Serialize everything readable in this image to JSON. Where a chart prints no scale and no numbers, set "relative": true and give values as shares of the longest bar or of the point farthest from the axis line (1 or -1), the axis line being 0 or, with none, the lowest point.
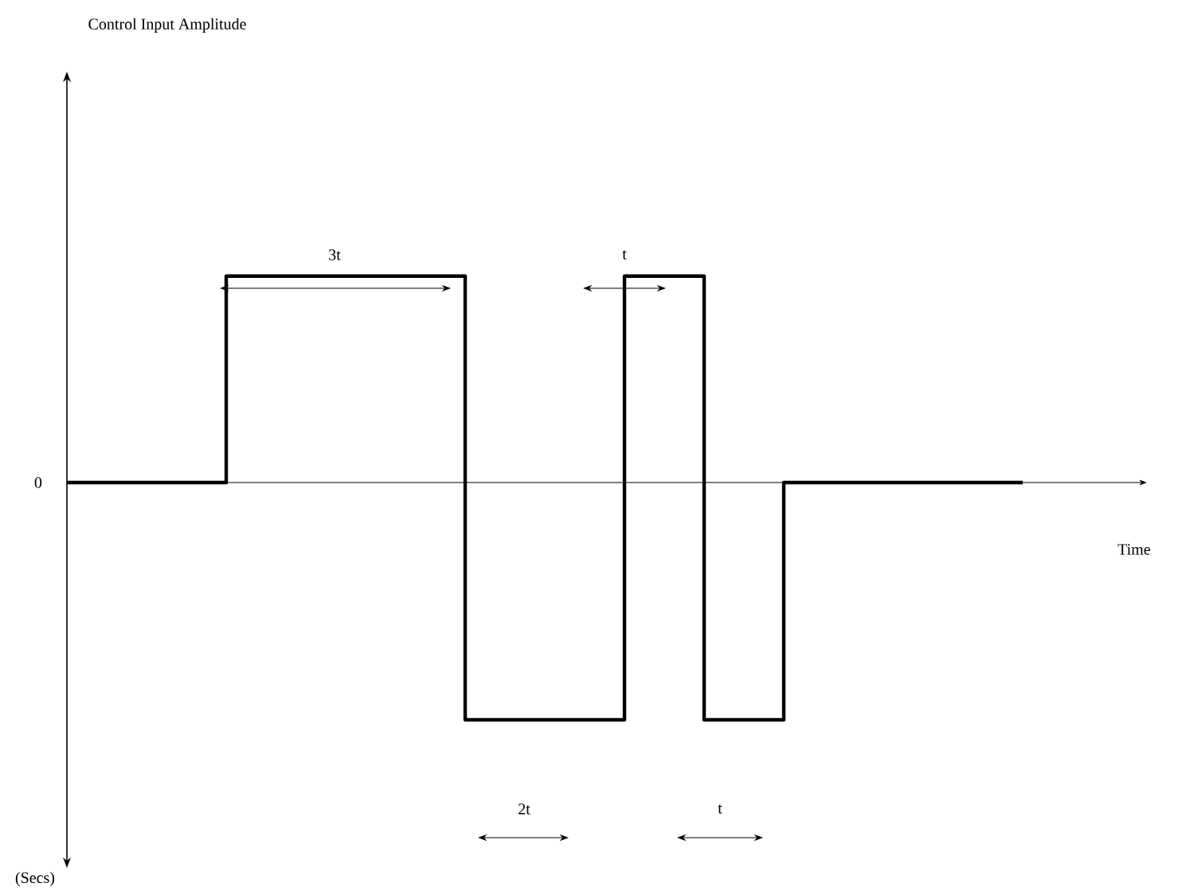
{
  "chart_data": {
    "type": "step",
    "relative": true,
    "xlabel": "Time",
    "categories": [
      null,
      null,
      null,
      null,
      null,
      null,
      null,
      null,
      null,
      null,
      null,
      null,
      null
    ],
    "values": [
      0,
      0,
      0.87,
      0.87,
      0.87,
      -1,
      -1,
      0.87,
      -1,
      0,
      0,
      0,
      0
    ],
    "color": "#000000",
    "annotations": [
      "0",
      "(Secs)",
      "3t",
      "t",
      "2t",
      "t",
      "Control Input Amplitude"
    ]
  }
}
